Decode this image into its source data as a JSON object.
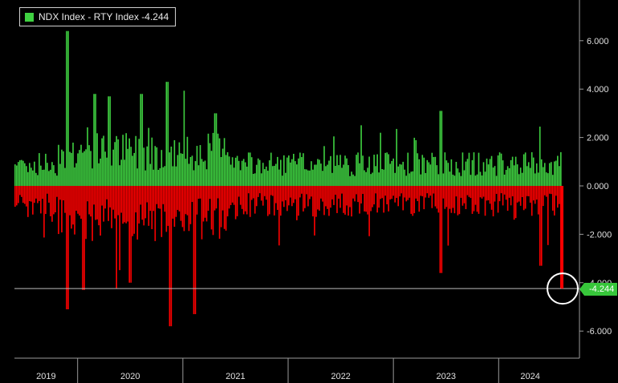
{
  "chart_data": {
    "type": "bar",
    "legend": {
      "label": "NDX Index - RTY Index -4.244",
      "color": "#3fd141",
      "position": "top-left"
    },
    "y_ticks": [
      "6.000",
      "4.000",
      "2.000",
      "0.000",
      "-2.000",
      "-4.000",
      "-6.000"
    ],
    "y_tick_values": [
      6,
      4,
      2,
      0,
      -2,
      -4,
      -6
    ],
    "ylim": [
      -7,
      7.5
    ],
    "x_tick_labels": [
      "2019",
      "2020",
      "2021",
      "2022",
      "2023",
      "2024"
    ],
    "x_range_years": [
      2019.4,
      2024.6
    ],
    "last_value": -4.244,
    "last_value_label": "-4.244",
    "positive_color": "#3fd141",
    "negative_color": "#ff0000",
    "peaks": [
      {
        "x": 2019.9,
        "y": 6.4
      },
      {
        "x": 2019.9,
        "y": -5.1
      },
      {
        "x": 2020.05,
        "y": -4.3
      },
      {
        "x": 2020.15,
        "y": 3.8
      },
      {
        "x": 2020.3,
        "y": 3.7
      },
      {
        "x": 2020.5,
        "y": -4.0
      },
      {
        "x": 2020.6,
        "y": 3.8
      },
      {
        "x": 2020.85,
        "y": 4.3
      },
      {
        "x": 2020.88,
        "y": -5.8
      },
      {
        "x": 2021.1,
        "y": -5.3
      },
      {
        "x": 2021.3,
        "y": 3.0
      },
      {
        "x": 2023.45,
        "y": 3.1
      },
      {
        "x": 2023.45,
        "y": -3.6
      },
      {
        "x": 2024.4,
        "y": -3.3
      },
      {
        "x": 2024.6,
        "y": -4.244
      }
    ],
    "envelope": {
      "pos_base": 1.0,
      "neg_base": -1.0
    }
  }
}
